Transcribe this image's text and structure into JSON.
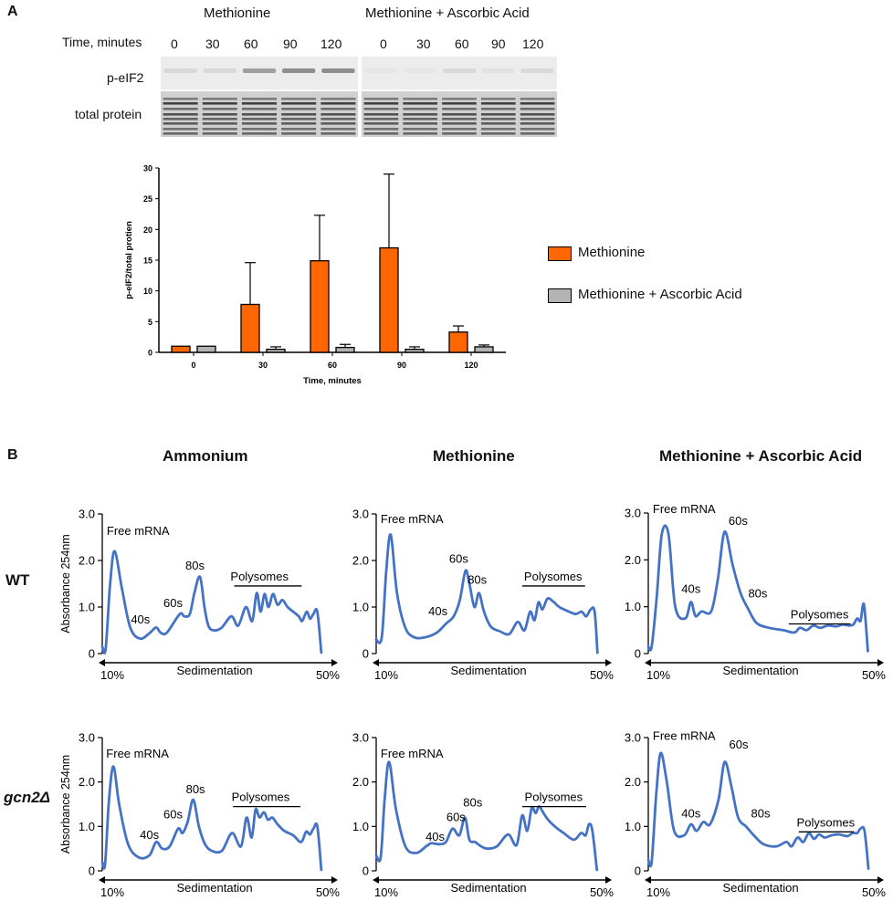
{
  "panel_a": {
    "letter": "A",
    "blot": {
      "conditions": [
        "Methionine",
        "Methionine + Ascorbic Acid"
      ],
      "time_label": "Time, minutes",
      "timepoints": [
        "0",
        "30",
        "60",
        "90",
        "120"
      ],
      "row_labels": [
        "p-eIF2",
        "total protein"
      ],
      "band_intensity": {
        "methionine": [
          0.12,
          0.1,
          0.45,
          0.55,
          0.55
        ],
        "methionine_aa": [
          0.03,
          0.03,
          0.12,
          0.06,
          0.1
        ]
      }
    },
    "legend": {
      "items": [
        {
          "label": "Methionine",
          "color": "#ff6600"
        },
        {
          "label": "Methionine + Ascorbic Acid",
          "color": "#b3b3b3"
        }
      ]
    }
  },
  "panel_b": {
    "letter": "B",
    "columns": [
      "Ammonium",
      "Methionine",
      "Methionine + Ascorbic Acid"
    ],
    "rows": [
      "WT",
      "gcn2Δ"
    ],
    "ylabel": "Absorbance 254nm",
    "xlabel": "Sedimentation",
    "x_start": "10%",
    "x_end": "50%",
    "yticks": [
      "0",
      "1.0",
      "2.0",
      "3.0"
    ],
    "line_color": "#4472c4"
  },
  "chart_data": [
    {
      "type": "bar",
      "title": "",
      "xlabel": "Time, minutes",
      "ylabel": "p-eIF2/total protien",
      "categories": [
        "0",
        "30",
        "60",
        "90",
        "120"
      ],
      "ylim": [
        0,
        30
      ],
      "yticks": [
        0,
        5,
        10,
        15,
        20,
        25,
        30
      ],
      "series": [
        {
          "name": "Methionine",
          "values": [
            1.0,
            7.8,
            14.9,
            17.0,
            3.3
          ],
          "errors": [
            0,
            6.8,
            7.4,
            12.0,
            1.0
          ]
        },
        {
          "name": "Methionine + Ascorbic Acid",
          "values": [
            1.0,
            0.5,
            0.8,
            0.5,
            0.9
          ],
          "errors": [
            0,
            0.4,
            0.5,
            0.4,
            0.3
          ]
        }
      ]
    },
    {
      "type": "line",
      "name": "WT Ammonium",
      "xlim": [
        10,
        50
      ],
      "ylim": [
        0,
        3.0
      ],
      "x": [
        10,
        10.6,
        11.4,
        12.2,
        13.5,
        15,
        16.8,
        18.5,
        19.6,
        20.4,
        21.5,
        23.8,
        24.6,
        25.6,
        26.4,
        27.4,
        28.2,
        28.9,
        29.8,
        31.2,
        33,
        34.2,
        35.6,
        36.7,
        37.5,
        38.2,
        38.9,
        39.6,
        40.4,
        41.2,
        42.1,
        43,
        44,
        45,
        45.6,
        46.4,
        47,
        47.6,
        48.3,
        49
      ],
      "y": [
        0.15,
        0.1,
        1.5,
        2.2,
        1.4,
        0.55,
        0.32,
        0.45,
        0.56,
        0.45,
        0.45,
        0.85,
        0.8,
        0.85,
        1.3,
        1.65,
        1.0,
        0.6,
        0.5,
        0.55,
        0.8,
        0.6,
        1.0,
        0.7,
        1.3,
        0.9,
        1.28,
        1.0,
        1.28,
        1.05,
        1.15,
        1.0,
        0.9,
        0.8,
        0.7,
        0.9,
        0.75,
        0.85,
        0.9,
        0.02
      ]
    },
    {
      "type": "line",
      "name": "WT Methionine",
      "xlim": [
        10,
        50
      ],
      "ylim": [
        0,
        3.0
      ],
      "x": [
        10,
        11,
        11.8,
        12.6,
        13.7,
        15.2,
        16.8,
        18.7,
        20.8,
        22.5,
        23.8,
        24.9,
        25.9,
        26.6,
        27.5,
        28.3,
        29.2,
        30.4,
        32,
        33.7,
        35.2,
        36.4,
        37.4,
        38.2,
        38.9,
        39.6,
        40.5,
        41.5,
        42.6,
        44,
        45.5,
        46.6,
        47.4,
        48.2,
        48.9,
        49.4
      ],
      "y": [
        0.3,
        0.35,
        1.8,
        2.55,
        1.3,
        0.55,
        0.35,
        0.35,
        0.45,
        0.65,
        0.8,
        1.15,
        1.78,
        1.5,
        1.0,
        1.3,
        0.9,
        0.58,
        0.48,
        0.42,
        0.68,
        0.5,
        0.9,
        0.72,
        1.1,
        0.95,
        1.18,
        1.12,
        1.0,
        0.92,
        0.85,
        0.9,
        0.8,
        0.95,
        0.9,
        0.02
      ]
    },
    {
      "type": "line",
      "name": "WT Methionine + Ascorbic Acid",
      "xlim": [
        10,
        50
      ],
      "ylim": [
        0,
        3.0
      ],
      "x": [
        10,
        10.6,
        11.5,
        12.4,
        13.6,
        14.8,
        16.6,
        17.6,
        18.4,
        19.5,
        21.2,
        22.4,
        23.6,
        25,
        26.4,
        27.8,
        29.3,
        31.5,
        34,
        36,
        37,
        38.2,
        39.4,
        40.6,
        42,
        43.5,
        44.6,
        45.6,
        46.5,
        47.2,
        47.8,
        48.4,
        49.1
      ],
      "y": [
        0.15,
        0.15,
        1.2,
        2.55,
        2.55,
        1.0,
        0.75,
        1.1,
        0.8,
        0.9,
        0.9,
        1.6,
        2.6,
        1.9,
        1.3,
        0.95,
        0.65,
        0.55,
        0.5,
        0.45,
        0.55,
        0.5,
        0.6,
        0.55,
        0.6,
        0.58,
        0.62,
        0.6,
        0.62,
        0.75,
        0.7,
        1.05,
        0.05
      ]
    },
    {
      "type": "line",
      "name": "gcn2Δ Ammonium",
      "xlim": [
        10,
        50
      ],
      "ylim": [
        0,
        3.0
      ],
      "x": [
        10,
        10.5,
        11.2,
        12,
        13,
        14.6,
        16.5,
        18.4,
        19.6,
        20.7,
        22,
        23.5,
        24.3,
        25.2,
        26.2,
        27.2,
        28.3,
        29.5,
        31.3,
        33.1,
        34.7,
        35.7,
        36.6,
        37.3,
        38,
        38.8,
        39.5,
        40.3,
        41.2,
        42.4,
        44,
        45.4,
        46.3,
        47,
        47.6,
        48.3,
        49
      ],
      "y": [
        0.2,
        0.15,
        1.6,
        2.35,
        1.5,
        0.6,
        0.3,
        0.35,
        0.65,
        0.5,
        0.55,
        0.95,
        0.85,
        1.1,
        1.6,
        1.0,
        0.6,
        0.45,
        0.45,
        0.85,
        0.55,
        1.2,
        0.75,
        1.38,
        1.2,
        1.32,
        1.15,
        1.2,
        1.05,
        0.9,
        0.8,
        0.65,
        0.88,
        0.82,
        0.95,
        1.0,
        0.02
      ]
    },
    {
      "type": "line",
      "name": "gcn2Δ Methionine",
      "xlim": [
        10,
        50
      ],
      "ylim": [
        0,
        3.0
      ],
      "x": [
        10,
        10.8,
        11.5,
        12.3,
        13.5,
        15.2,
        17.1,
        18.9,
        19.8,
        21.2,
        22.4,
        23.6,
        24.8,
        25.8,
        26.6,
        27.6,
        28.7,
        29.8,
        31.5,
        33.5,
        35,
        36,
        36.9,
        37.7,
        38.4,
        39,
        39.7,
        40.6,
        41.8,
        43.4,
        45.2,
        46.5,
        47.3,
        47.9,
        48.5,
        49.3
      ],
      "y": [
        0.35,
        0.3,
        1.6,
        2.45,
        1.4,
        0.55,
        0.4,
        0.55,
        0.62,
        0.6,
        0.65,
        0.95,
        0.8,
        1.2,
        0.7,
        0.65,
        0.55,
        0.5,
        0.55,
        0.82,
        0.58,
        1.25,
        0.9,
        1.42,
        1.3,
        1.45,
        1.32,
        1.15,
        1.0,
        0.85,
        0.7,
        0.85,
        0.8,
        1.05,
        0.9,
        0.02
      ]
    },
    {
      "type": "line",
      "name": "gcn2Δ Methionine + Ascorbic Acid",
      "xlim": [
        10,
        50
      ],
      "ylim": [
        0,
        3.0
      ],
      "x": [
        10,
        10.6,
        11.4,
        12.2,
        13.3,
        14.6,
        16.4,
        17.6,
        18.6,
        19.8,
        21,
        22.5,
        23.6,
        24.8,
        26,
        27.4,
        28.8,
        30.5,
        32.8,
        34.6,
        35.5,
        36.6,
        37.6,
        38.6,
        39.5,
        40.4,
        41.4,
        42.6,
        44,
        45.4,
        46.4,
        47.2,
        47.8,
        48.5,
        49.2
      ],
      "y": [
        0.25,
        0.2,
        1.7,
        2.65,
        2.0,
        0.9,
        0.8,
        1.05,
        0.9,
        1.1,
        1.05,
        1.6,
        2.45,
        1.9,
        1.2,
        1.0,
        0.8,
        0.6,
        0.55,
        0.65,
        0.55,
        0.75,
        0.65,
        0.85,
        0.72,
        0.82,
        0.75,
        0.8,
        0.82,
        0.78,
        0.85,
        0.85,
        0.95,
        0.9,
        0.05
      ]
    }
  ]
}
